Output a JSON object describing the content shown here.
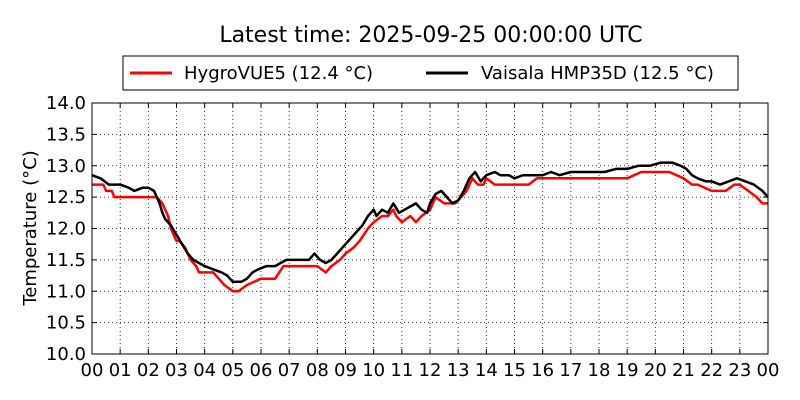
{
  "chart_data": {
    "type": "line",
    "title": "Latest time: 2025-09-25 00:00:00 UTC",
    "xlabel": "",
    "ylabel": "Temperature (°C)",
    "xlim": [
      0,
      24
    ],
    "ylim": [
      10.0,
      14.0
    ],
    "x_tick_labels": [
      "00",
      "01",
      "02",
      "03",
      "04",
      "05",
      "06",
      "07",
      "08",
      "09",
      "10",
      "11",
      "12",
      "13",
      "14",
      "15",
      "16",
      "17",
      "18",
      "19",
      "20",
      "21",
      "22",
      "23",
      "00"
    ],
    "y_tick_labels": [
      "10.0",
      "10.5",
      "11.0",
      "11.5",
      "12.0",
      "12.5",
      "13.0",
      "13.5",
      "14.0"
    ],
    "grid": true,
    "legend_position": "top",
    "series": [
      {
        "name": "HygroVUE5 (12.4 °C)",
        "color": "#ff0000",
        "x": [
          0,
          0.4,
          0.5,
          0.7,
          0.8,
          0.9,
          1.0,
          1.5,
          2.0,
          2.3,
          2.5,
          2.6,
          2.7,
          2.8,
          2.9,
          3.0,
          3.1,
          3.3,
          3.5,
          3.7,
          3.8,
          4.0,
          4.3,
          4.5,
          4.7,
          5.0,
          5.2,
          5.5,
          6.0,
          6.5,
          6.8,
          7.0,
          7.5,
          8.0,
          8.3,
          8.5,
          8.8,
          9.0,
          9.3,
          9.5,
          9.8,
          10.0,
          10.3,
          10.5,
          10.7,
          10.8,
          11.0,
          11.3,
          11.5,
          11.7,
          12.0,
          12.2,
          12.5,
          12.7,
          12.9,
          13.1,
          13.3,
          13.5,
          13.7,
          13.9,
          14.0,
          14.3,
          14.6,
          15.0,
          15.3,
          15.5,
          15.8,
          16.0,
          16.5,
          17.0,
          17.5,
          18.0,
          18.5,
          19.0,
          19.5,
          20.0,
          20.5,
          21.0,
          21.3,
          21.5,
          22.0,
          22.5,
          22.8,
          23.0,
          23.3,
          23.6,
          23.8,
          24.0
        ],
        "y": [
          12.7,
          12.7,
          12.6,
          12.6,
          12.5,
          12.5,
          12.5,
          12.5,
          12.5,
          12.5,
          12.4,
          12.3,
          12.2,
          12.0,
          11.9,
          11.8,
          11.8,
          11.7,
          11.5,
          11.4,
          11.3,
          11.3,
          11.3,
          11.2,
          11.1,
          11.0,
          11.0,
          11.1,
          11.2,
          11.2,
          11.4,
          11.4,
          11.4,
          11.4,
          11.3,
          11.4,
          11.5,
          11.6,
          11.7,
          11.8,
          12.0,
          12.1,
          12.2,
          12.2,
          12.3,
          12.2,
          12.1,
          12.2,
          12.1,
          12.2,
          12.3,
          12.5,
          12.4,
          12.4,
          12.4,
          12.5,
          12.6,
          12.8,
          12.7,
          12.7,
          12.8,
          12.7,
          12.7,
          12.7,
          12.7,
          12.7,
          12.8,
          12.8,
          12.8,
          12.8,
          12.8,
          12.8,
          12.8,
          12.8,
          12.9,
          12.9,
          12.9,
          12.8,
          12.7,
          12.7,
          12.6,
          12.6,
          12.7,
          12.7,
          12.6,
          12.5,
          12.4,
          12.4
        ]
      },
      {
        "name": "Vaisala HMP35D (12.5 °C)",
        "color": "#000000",
        "x": [
          0,
          0.3,
          0.6,
          0.8,
          1.0,
          1.3,
          1.5,
          1.8,
          2.0,
          2.2,
          2.4,
          2.5,
          2.6,
          2.8,
          3.0,
          3.2,
          3.4,
          3.6,
          3.8,
          4.0,
          4.3,
          4.6,
          4.8,
          5.0,
          5.3,
          5.5,
          5.7,
          5.9,
          6.2,
          6.5,
          6.7,
          6.9,
          7.1,
          7.4,
          7.7,
          7.9,
          8.1,
          8.3,
          8.5,
          8.8,
          9.0,
          9.2,
          9.4,
          9.6,
          9.8,
          10.0,
          10.1,
          10.3,
          10.5,
          10.7,
          10.9,
          11.1,
          11.3,
          11.5,
          11.7,
          11.9,
          12.0,
          12.2,
          12.4,
          12.6,
          12.8,
          13.0,
          13.2,
          13.4,
          13.6,
          13.8,
          14.0,
          14.3,
          14.5,
          14.8,
          15.0,
          15.3,
          15.6,
          16.0,
          16.3,
          16.6,
          17.0,
          17.4,
          17.8,
          18.2,
          18.6,
          19.0,
          19.4,
          19.8,
          20.2,
          20.6,
          20.9,
          21.1,
          21.3,
          21.5,
          21.8,
          22.0,
          22.3,
          22.6,
          22.9,
          23.2,
          23.5,
          23.8,
          24.0
        ],
        "y": [
          12.85,
          12.8,
          12.7,
          12.7,
          12.7,
          12.65,
          12.6,
          12.65,
          12.65,
          12.6,
          12.4,
          12.25,
          12.15,
          12.05,
          11.9,
          11.75,
          11.6,
          11.5,
          11.45,
          11.4,
          11.35,
          11.3,
          11.25,
          11.15,
          11.15,
          11.2,
          11.3,
          11.35,
          11.4,
          11.4,
          11.45,
          11.5,
          11.5,
          11.5,
          11.5,
          11.6,
          11.5,
          11.45,
          11.5,
          11.65,
          11.75,
          11.85,
          11.95,
          12.05,
          12.2,
          12.3,
          12.2,
          12.3,
          12.25,
          12.4,
          12.25,
          12.3,
          12.35,
          12.4,
          12.3,
          12.25,
          12.4,
          12.55,
          12.6,
          12.5,
          12.4,
          12.45,
          12.6,
          12.8,
          12.9,
          12.75,
          12.85,
          12.9,
          12.85,
          12.85,
          12.8,
          12.85,
          12.85,
          12.85,
          12.9,
          12.85,
          12.9,
          12.9,
          12.9,
          12.9,
          12.95,
          12.95,
          13.0,
          13.0,
          13.05,
          13.05,
          13.0,
          12.95,
          12.85,
          12.8,
          12.75,
          12.75,
          12.7,
          12.75,
          12.8,
          12.75,
          12.7,
          12.6,
          12.5
        ]
      }
    ]
  }
}
